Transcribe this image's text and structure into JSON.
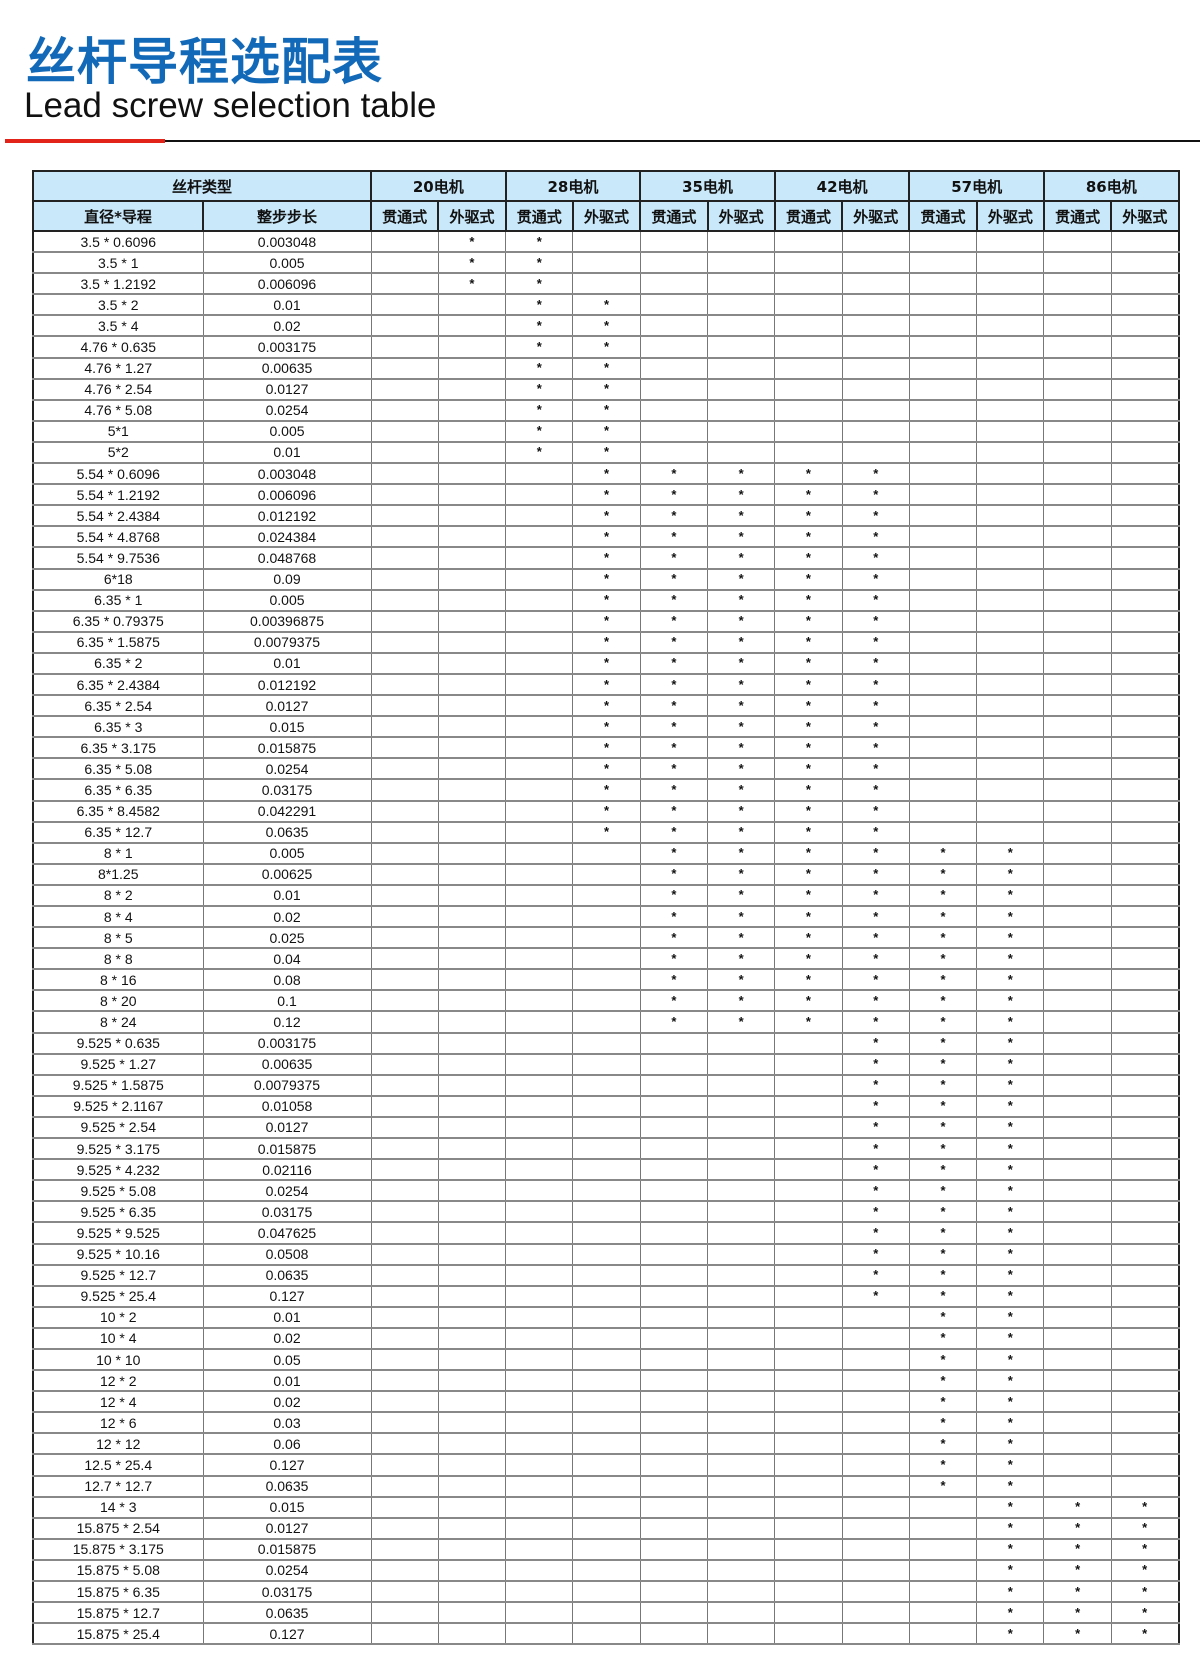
{
  "title": {
    "cn": "丝杆导程选配表",
    "en": "Lead screw selection table"
  },
  "header": {
    "group_label": "丝杆类型",
    "col_diameter_lead": "直径*导程",
    "col_full_step": "整步步长",
    "motors": [
      "20电机",
      "28电机",
      "35电机",
      "42电机",
      "57电机",
      "86电机"
    ],
    "sub_through": "贯通式",
    "sub_external": "外驱式"
  },
  "mark_symbol": "*",
  "rows": [
    {
      "d": "3.5 * 0.6096",
      "s": "0.003048",
      "cols": [
        1,
        2
      ]
    },
    {
      "d": "3.5 * 1",
      "s": "0.005",
      "cols": [
        1,
        2
      ]
    },
    {
      "d": "3.5 * 1.2192",
      "s": "0.006096",
      "cols": [
        1,
        2
      ]
    },
    {
      "d": "3.5 * 2",
      "s": "0.01",
      "cols": [
        2,
        3
      ]
    },
    {
      "d": "3.5 * 4",
      "s": "0.02",
      "cols": [
        2,
        3
      ]
    },
    {
      "d": "4.76 * 0.635",
      "s": "0.003175",
      "cols": [
        2,
        3
      ]
    },
    {
      "d": "4.76 * 1.27",
      "s": "0.00635",
      "cols": [
        2,
        3
      ]
    },
    {
      "d": "4.76 * 2.54",
      "s": "0.0127",
      "cols": [
        2,
        3
      ]
    },
    {
      "d": "4.76 * 5.08",
      "s": "0.0254",
      "cols": [
        2,
        3
      ]
    },
    {
      "d": "5*1",
      "s": "0.005",
      "cols": [
        2,
        3
      ]
    },
    {
      "d": "5*2",
      "s": "0.01",
      "cols": [
        2,
        3
      ]
    },
    {
      "d": "5.54 * 0.6096",
      "s": "0.003048",
      "cols": [
        3,
        4,
        5,
        6,
        7
      ]
    },
    {
      "d": "5.54 * 1.2192",
      "s": "0.006096",
      "cols": [
        3,
        4,
        5,
        6,
        7
      ]
    },
    {
      "d": "5.54 * 2.4384",
      "s": "0.012192",
      "cols": [
        3,
        4,
        5,
        6,
        7
      ]
    },
    {
      "d": "5.54 * 4.8768",
      "s": "0.024384",
      "cols": [
        3,
        4,
        5,
        6,
        7
      ]
    },
    {
      "d": "5.54 * 9.7536",
      "s": "0.048768",
      "cols": [
        3,
        4,
        5,
        6,
        7
      ]
    },
    {
      "d": "6*18",
      "s": "0.09",
      "cols": [
        3,
        4,
        5,
        6,
        7
      ]
    },
    {
      "d": "6.35 * 1",
      "s": "0.005",
      "cols": [
        3,
        4,
        5,
        6,
        7
      ]
    },
    {
      "d": "6.35 * 0.79375",
      "s": "0.00396875",
      "cols": [
        3,
        4,
        5,
        6,
        7
      ]
    },
    {
      "d": "6.35 * 1.5875",
      "s": "0.0079375",
      "cols": [
        3,
        4,
        5,
        6,
        7
      ]
    },
    {
      "d": "6.35 * 2",
      "s": "0.01",
      "cols": [
        3,
        4,
        5,
        6,
        7
      ]
    },
    {
      "d": "6.35 * 2.4384",
      "s": "0.012192",
      "cols": [
        3,
        4,
        5,
        6,
        7
      ]
    },
    {
      "d": "6.35 * 2.54",
      "s": "0.0127",
      "cols": [
        3,
        4,
        5,
        6,
        7
      ]
    },
    {
      "d": "6.35 * 3",
      "s": "0.015",
      "cols": [
        3,
        4,
        5,
        6,
        7
      ]
    },
    {
      "d": "6.35 * 3.175",
      "s": "0.015875",
      "cols": [
        3,
        4,
        5,
        6,
        7
      ]
    },
    {
      "d": "6.35 * 5.08",
      "s": "0.0254",
      "cols": [
        3,
        4,
        5,
        6,
        7
      ]
    },
    {
      "d": "6.35 * 6.35",
      "s": "0.03175",
      "cols": [
        3,
        4,
        5,
        6,
        7
      ]
    },
    {
      "d": "6.35 * 8.4582",
      "s": "0.042291",
      "cols": [
        3,
        4,
        5,
        6,
        7
      ]
    },
    {
      "d": "6.35 * 12.7",
      "s": "0.0635",
      "cols": [
        3,
        4,
        5,
        6,
        7
      ]
    },
    {
      "d": "8 * 1",
      "s": "0.005",
      "cols": [
        4,
        5,
        6,
        7,
        8,
        9
      ]
    },
    {
      "d": "8*1.25",
      "s": "0.00625",
      "cols": [
        4,
        5,
        6,
        7,
        8,
        9
      ]
    },
    {
      "d": "8 * 2",
      "s": "0.01",
      "cols": [
        4,
        5,
        6,
        7,
        8,
        9
      ]
    },
    {
      "d": "8 * 4",
      "s": "0.02",
      "cols": [
        4,
        5,
        6,
        7,
        8,
        9
      ]
    },
    {
      "d": "8 * 5",
      "s": "0.025",
      "cols": [
        4,
        5,
        6,
        7,
        8,
        9
      ]
    },
    {
      "d": "8 * 8",
      "s": "0.04",
      "cols": [
        4,
        5,
        6,
        7,
        8,
        9
      ]
    },
    {
      "d": "8 * 16",
      "s": "0.08",
      "cols": [
        4,
        5,
        6,
        7,
        8,
        9
      ]
    },
    {
      "d": "8 * 20",
      "s": "0.1",
      "cols": [
        4,
        5,
        6,
        7,
        8,
        9
      ]
    },
    {
      "d": "8 * 24",
      "s": "0.12",
      "cols": [
        4,
        5,
        6,
        7,
        8,
        9
      ]
    },
    {
      "d": "9.525 * 0.635",
      "s": "0.003175",
      "cols": [
        7,
        8,
        9
      ]
    },
    {
      "d": "9.525 * 1.27",
      "s": "0.00635",
      "cols": [
        7,
        8,
        9
      ]
    },
    {
      "d": "9.525 * 1.5875",
      "s": "0.0079375",
      "cols": [
        7,
        8,
        9
      ]
    },
    {
      "d": "9.525 * 2.1167",
      "s": "0.01058",
      "cols": [
        7,
        8,
        9
      ]
    },
    {
      "d": "9.525 * 2.54",
      "s": "0.0127",
      "cols": [
        7,
        8,
        9
      ]
    },
    {
      "d": "9.525 * 3.175",
      "s": "0.015875",
      "cols": [
        7,
        8,
        9
      ]
    },
    {
      "d": "9.525 * 4.232",
      "s": "0.02116",
      "cols": [
        7,
        8,
        9
      ]
    },
    {
      "d": "9.525 * 5.08",
      "s": "0.0254",
      "cols": [
        7,
        8,
        9
      ]
    },
    {
      "d": "9.525 * 6.35",
      "s": "0.03175",
      "cols": [
        7,
        8,
        9
      ]
    },
    {
      "d": "9.525 * 9.525",
      "s": "0.047625",
      "cols": [
        7,
        8,
        9
      ]
    },
    {
      "d": "9.525 * 10.16",
      "s": "0.0508",
      "cols": [
        7,
        8,
        9
      ]
    },
    {
      "d": "9.525 * 12.7",
      "s": "0.0635",
      "cols": [
        7,
        8,
        9
      ]
    },
    {
      "d": "9.525 * 25.4",
      "s": "0.127",
      "cols": [
        7,
        8,
        9
      ]
    },
    {
      "d": "10 * 2",
      "s": "0.01",
      "cols": [
        8,
        9
      ]
    },
    {
      "d": "10 * 4",
      "s": "0.02",
      "cols": [
        8,
        9
      ]
    },
    {
      "d": "10 * 10",
      "s": "0.05",
      "cols": [
        8,
        9
      ]
    },
    {
      "d": "12 * 2",
      "s": "0.01",
      "cols": [
        8,
        9
      ]
    },
    {
      "d": "12 * 4",
      "s": "0.02",
      "cols": [
        8,
        9
      ]
    },
    {
      "d": "12 * 6",
      "s": "0.03",
      "cols": [
        8,
        9
      ]
    },
    {
      "d": "12 * 12",
      "s": "0.06",
      "cols": [
        8,
        9
      ]
    },
    {
      "d": "12.5 * 25.4",
      "s": "0.127",
      "cols": [
        8,
        9
      ]
    },
    {
      "d": "12.7 * 12.7",
      "s": "0.0635",
      "cols": [
        8,
        9
      ]
    },
    {
      "d": "14 * 3",
      "s": "0.015",
      "cols": [
        9,
        10,
        11
      ]
    },
    {
      "d": "15.875 * 2.54",
      "s": "0.0127",
      "cols": [
        9,
        10,
        11
      ]
    },
    {
      "d": "15.875 * 3.175",
      "s": "0.015875",
      "cols": [
        9,
        10,
        11
      ]
    },
    {
      "d": "15.875 * 5.08",
      "s": "0.0254",
      "cols": [
        9,
        10,
        11
      ]
    },
    {
      "d": "15.875 * 6.35",
      "s": "0.03175",
      "cols": [
        9,
        10,
        11
      ]
    },
    {
      "d": "15.875 * 12.7",
      "s": "0.0635",
      "cols": [
        9,
        10,
        11
      ]
    },
    {
      "d": "15.875 * 25.4",
      "s": "0.127",
      "cols": [
        9,
        10,
        11
      ]
    }
  ],
  "colors": {
    "title": "#1269b8",
    "header_bg": "#c9e8f9",
    "accent_rule": "#e2231a"
  }
}
